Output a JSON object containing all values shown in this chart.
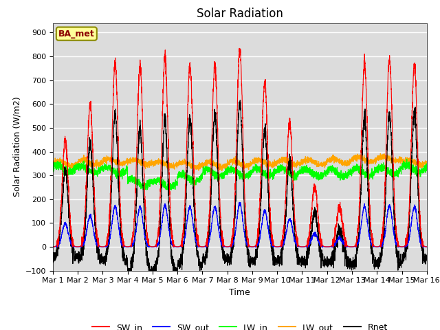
{
  "title": "Solar Radiation",
  "ylabel": "Solar Radiation (W/m2)",
  "xlabel": "Time",
  "ylim": [
    -100,
    940
  ],
  "yticks": [
    -100,
    0,
    100,
    200,
    300,
    400,
    500,
    600,
    700,
    800,
    900
  ],
  "n_days": 15,
  "points_per_day": 288,
  "sw_in_peaks": [
    450,
    600,
    770,
    760,
    790,
    760,
    760,
    830,
    690,
    520,
    250,
    165,
    770,
    790,
    760
  ],
  "sw_out_ratio": 0.22,
  "lw_in_base": 320,
  "lw_out_base": 350,
  "colors": {
    "SW_in": "red",
    "SW_out": "blue",
    "LW_in": "lime",
    "LW_out": "orange",
    "Rnet": "black"
  },
  "station_label": "BA_met",
  "station_label_color": "#8B0000",
  "station_box_facecolor": "#FFFF99",
  "station_box_edgecolor": "#8B8B00",
  "bg_color": "#DCDCDC",
  "grid_color": "white",
  "x_tick_labels": [
    "Mar 1",
    "Mar 2",
    "Mar 3",
    "Mar 4",
    "Mar 5",
    "Mar 6",
    "Mar 7",
    "Mar 8",
    "Mar 9",
    "Mar 10",
    "Mar 11",
    "Mar 12",
    "Mar 13",
    "Mar 14",
    "Mar 15",
    "Mar 16"
  ],
  "title_fontsize": 12,
  "axis_label_fontsize": 9,
  "tick_fontsize": 8,
  "figsize": [
    6.4,
    4.8
  ],
  "dpi": 100
}
